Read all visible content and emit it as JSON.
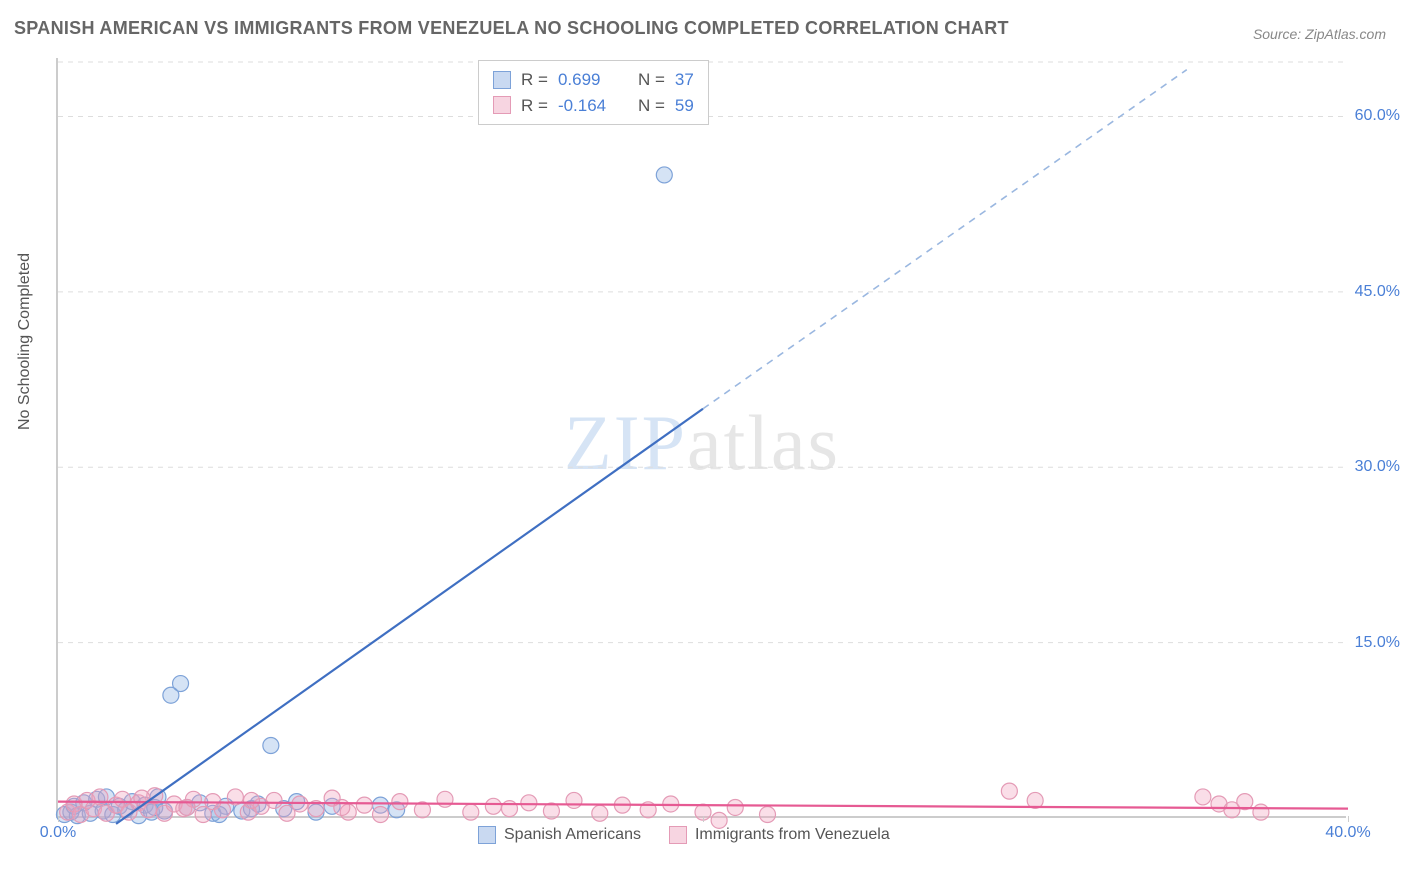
{
  "title": "SPANISH AMERICAN VS IMMIGRANTS FROM VENEZUELA NO SCHOOLING COMPLETED CORRELATION CHART",
  "source": "Source: ZipAtlas.com",
  "watermark_zip": "ZIP",
  "watermark_rest": "atlas",
  "ylabel": "No Schooling Completed",
  "chart": {
    "type": "scatter",
    "xlim": [
      0,
      40
    ],
    "ylim": [
      0,
      65
    ],
    "xticks": [
      0.0,
      20.0,
      40.0
    ],
    "xtick_labels": [
      "0.0%",
      "",
      "40.0%"
    ],
    "yticks": [
      15.0,
      30.0,
      45.0,
      60.0
    ],
    "ytick_labels": [
      "15.0%",
      "30.0%",
      "45.0%",
      "60.0%"
    ],
    "grid_color": "#dddddd",
    "axis_color": "#cccccc",
    "background_color": "#ffffff",
    "marker_radius": 8,
    "marker_stroke_width": 1.2,
    "trend_line_width": 2.2,
    "series": [
      {
        "name": "Spanish Americans",
        "color_fill": "rgba(135,175,225,0.35)",
        "color_stroke": "#7da2d8",
        "trend_color": "#3f6fc2",
        "trend_dash_color": "#9ab7e0",
        "r": "0.699",
        "n": "37",
        "trend": {
          "x0": 1.8,
          "y0": -0.5,
          "x1": 20.0,
          "y1": 35.0,
          "x2": 35.0,
          "y2": 64.0
        },
        "points": [
          [
            0.2,
            0.3
          ],
          [
            0.4,
            0.5
          ],
          [
            0.5,
            1.0
          ],
          [
            0.6,
            0.2
          ],
          [
            0.8,
            1.3
          ],
          [
            1.0,
            0.4
          ],
          [
            1.2,
            1.6
          ],
          [
            1.4,
            0.6
          ],
          [
            1.5,
            1.8
          ],
          [
            1.7,
            0.3
          ],
          [
            1.9,
            1.0
          ],
          [
            2.1,
            0.7
          ],
          [
            2.3,
            1.4
          ],
          [
            2.5,
            0.2
          ],
          [
            2.7,
            1.1
          ],
          [
            2.9,
            0.5
          ],
          [
            3.1,
            1.8
          ],
          [
            3.3,
            0.6
          ],
          [
            3.5,
            10.5
          ],
          [
            3.8,
            11.5
          ],
          [
            4.0,
            0.9
          ],
          [
            4.4,
            1.3
          ],
          [
            4.8,
            0.4
          ],
          [
            5.2,
            1.0
          ],
          [
            5.7,
            0.6
          ],
          [
            6.2,
            1.2
          ],
          [
            6.6,
            6.2
          ],
          [
            7.0,
            0.8
          ],
          [
            7.4,
            1.4
          ],
          [
            8.0,
            0.5
          ],
          [
            8.5,
            1.0
          ],
          [
            10.0,
            1.1
          ],
          [
            10.5,
            0.7
          ],
          [
            18.8,
            55.0
          ],
          [
            3.0,
            0.9
          ],
          [
            5.0,
            0.3
          ],
          [
            6.0,
            0.8
          ]
        ]
      },
      {
        "name": "Immigrants from Venezuela",
        "color_fill": "rgba(240,160,190,0.35)",
        "color_stroke": "#e49bb6",
        "trend_color": "#e65a93",
        "r": "-0.164",
        "n": "59",
        "trend": {
          "x0": 0.0,
          "y0": 1.4,
          "x1": 40.0,
          "y1": 0.8
        },
        "points": [
          [
            0.3,
            0.5
          ],
          [
            0.5,
            1.2
          ],
          [
            0.7,
            0.3
          ],
          [
            0.9,
            1.5
          ],
          [
            1.1,
            0.8
          ],
          [
            1.3,
            1.8
          ],
          [
            1.5,
            0.4
          ],
          [
            1.8,
            1.1
          ],
          [
            2.0,
            1.6
          ],
          [
            2.2,
            0.5
          ],
          [
            2.5,
            1.3
          ],
          [
            2.8,
            0.7
          ],
          [
            3.0,
            1.9
          ],
          [
            3.3,
            0.4
          ],
          [
            3.6,
            1.2
          ],
          [
            3.9,
            0.8
          ],
          [
            4.2,
            1.6
          ],
          [
            4.5,
            0.3
          ],
          [
            4.8,
            1.4
          ],
          [
            5.1,
            0.7
          ],
          [
            5.5,
            1.8
          ],
          [
            5.9,
            0.5
          ],
          [
            6.3,
            1.0
          ],
          [
            6.7,
            1.5
          ],
          [
            7.1,
            0.4
          ],
          [
            7.5,
            1.2
          ],
          [
            8.0,
            0.8
          ],
          [
            8.5,
            1.7
          ],
          [
            9.0,
            0.5
          ],
          [
            9.5,
            1.1
          ],
          [
            10.0,
            0.3
          ],
          [
            10.6,
            1.4
          ],
          [
            11.3,
            0.7
          ],
          [
            12.0,
            1.6
          ],
          [
            12.8,
            0.5
          ],
          [
            13.5,
            1.0
          ],
          [
            14.0,
            0.8
          ],
          [
            14.6,
            1.3
          ],
          [
            15.3,
            0.6
          ],
          [
            16.0,
            1.5
          ],
          [
            16.8,
            0.4
          ],
          [
            17.5,
            1.1
          ],
          [
            18.3,
            0.7
          ],
          [
            19.0,
            1.2
          ],
          [
            20.0,
            0.5
          ],
          [
            21.0,
            0.9
          ],
          [
            22.0,
            0.3
          ],
          [
            29.5,
            2.3
          ],
          [
            30.3,
            1.5
          ],
          [
            35.5,
            1.8
          ],
          [
            36.0,
            1.2
          ],
          [
            36.4,
            0.7
          ],
          [
            36.8,
            1.4
          ],
          [
            37.3,
            0.5
          ],
          [
            20.5,
            -0.2
          ],
          [
            2.6,
            1.7
          ],
          [
            4.0,
            0.9
          ],
          [
            6.0,
            1.5
          ],
          [
            8.8,
            0.9
          ]
        ]
      }
    ]
  },
  "legend": {
    "series1": "Spanish Americans",
    "series2": "Immigrants from Venezuela"
  }
}
